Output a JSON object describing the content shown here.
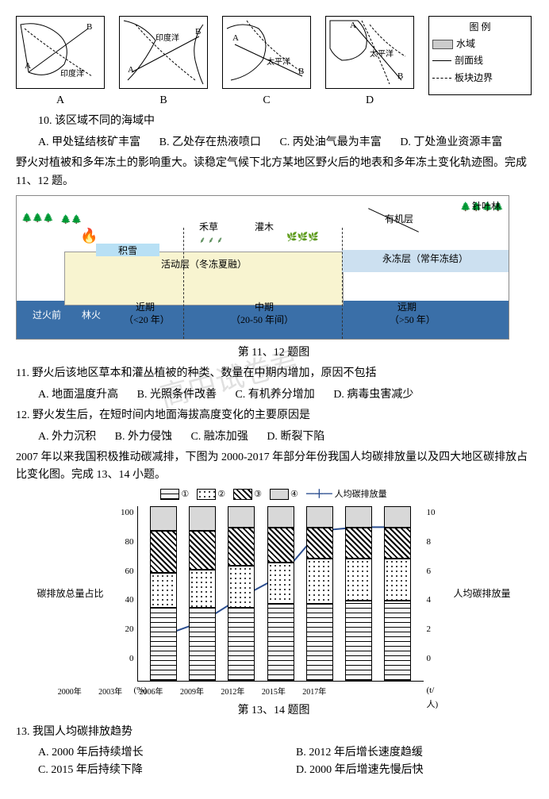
{
  "maps": {
    "labels": [
      "A",
      "B",
      "C",
      "D"
    ],
    "ocean_text": [
      "印度洋",
      "印度洋",
      "太平洋",
      "太平洋"
    ],
    "legend_title": "图 例",
    "legend_items": [
      "水域",
      "剖面线",
      "板块边界"
    ]
  },
  "q10": {
    "stem": "10. 该区域不同的海域中",
    "opts": [
      "A. 甲处锰结核矿丰富",
      "B. 乙处存在热液喷口",
      "C. 丙处油气最为丰富",
      "D. 丁处渔业资源丰富"
    ]
  },
  "intro11": "    野火对植被和多年冻土的影响重大。读稳定气候下北方某地区野火后的地表和多年冻土变化轨迹图。完成 11、12 题。",
  "diagram11": {
    "labels": {
      "fire_before": "过火前",
      "fire": "林火",
      "snow": "积雪",
      "active": "活动层（冬冻夏融）",
      "perma": "永冻层（常年冻结）",
      "near": "近期",
      "near_sub": "（<20 年）",
      "mid": "中期",
      "mid_sub": "（20-50 年间）",
      "far": "远期",
      "far_sub": "（>50 年）",
      "grass": "禾草",
      "shrub": "灌木",
      "organic": "有机层",
      "conifer": "针叶林"
    },
    "caption": "第 11、12 题图"
  },
  "q11": {
    "stem": "11. 野火后该地区草本和灌丛植被的种类、数量在中期内增加，原因不包括",
    "opts": [
      "A. 地面温度升高",
      "B. 光照条件改善",
      "C. 有机养分增加",
      "D. 病毒虫害减少"
    ]
  },
  "q12": {
    "stem": "12. 野火发生后，在短时间内地面海拔高度变化的主要原因是",
    "opts": [
      "A. 外力沉积",
      "B. 外力侵蚀",
      "C. 融冻加强",
      "D. 断裂下陷"
    ]
  },
  "intro13": "    2007 年以来我国积极推动碳减排，下图为 2000-2017 年部分年份我国人均碳排放量以及四大地区碳排放占比变化图。完成 13、14 小题。",
  "chart13": {
    "legend": [
      "①",
      "②",
      "③",
      "④",
      "人均碳排放量"
    ],
    "y_left_title": "碳排放总量占比",
    "y_left_unit": "(%)",
    "y_right_title": "人均碳排放量",
    "y_right_unit": "(t/人)",
    "y_left_ticks": [
      "100",
      "80",
      "60",
      "40",
      "20",
      "0"
    ],
    "y_right_ticks": [
      "10",
      "8",
      "6",
      "4",
      "2",
      "0"
    ],
    "years": [
      "2000年",
      "2003年",
      "2006年",
      "2009年",
      "2012年",
      "2015年",
      "2017年"
    ],
    "bars": [
      [
        42,
        20,
        24,
        14
      ],
      [
        42,
        22,
        22,
        14
      ],
      [
        42,
        24,
        22,
        12
      ],
      [
        44,
        24,
        20,
        12
      ],
      [
        44,
        26,
        18,
        12
      ],
      [
        46,
        24,
        18,
        12
      ],
      [
        46,
        24,
        18,
        12
      ]
    ],
    "line": [
      2.6,
      3.4,
      4.8,
      6.0,
      8.6,
      8.8,
      8.8
    ],
    "caption": "第 13、14 题图"
  },
  "q13": {
    "stem": "13. 我国人均碳排放趋势",
    "opts": [
      "A. 2000 年后持续增长",
      "B. 2012 年后增长速度趋缓",
      "C. 2015 年后持续下降",
      "D. 2000 年后增速先慢后快"
    ]
  },
  "watermark": "高中试卷君"
}
